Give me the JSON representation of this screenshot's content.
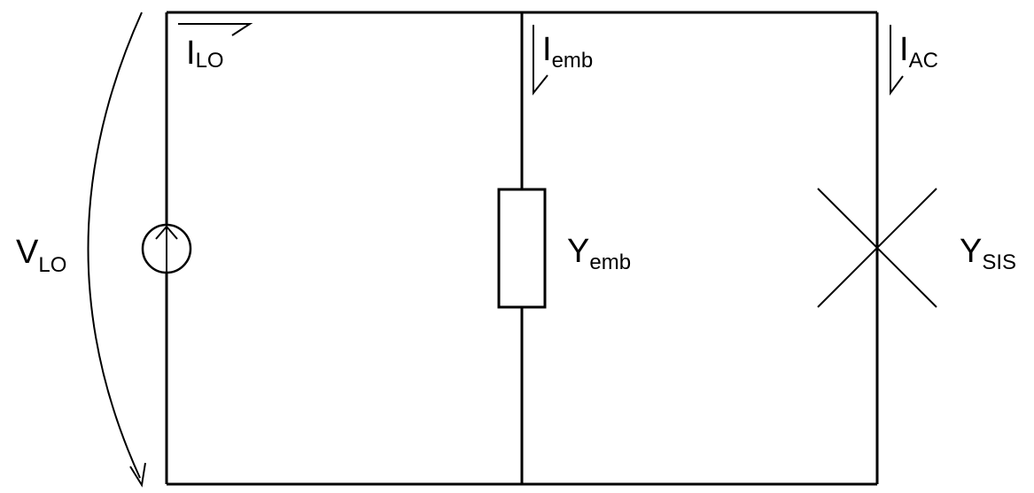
{
  "diagram": {
    "voltage_label": {
      "main": "V",
      "sub": "LO"
    },
    "current_lo_label": {
      "main": "I",
      "sub": "LO"
    },
    "current_emb_label": {
      "main": "I",
      "sub": "emb"
    },
    "current_ac_label": {
      "main": "I",
      "sub": "AC"
    },
    "admittance_emb_label": {
      "main": "Y",
      "sub": "emb"
    },
    "admittance_sis_label": {
      "main": "Y",
      "sub": "SIS"
    }
  }
}
